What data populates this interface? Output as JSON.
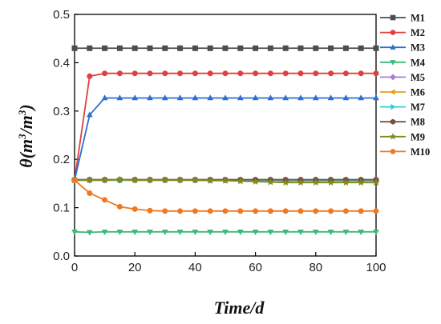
{
  "chart_data": {
    "type": "line",
    "title": "",
    "xlabel": "Time/d",
    "ylabel": {
      "symbol": "θ",
      "open": "(",
      "m1": "m",
      "sup1": "3",
      "slash": "/",
      "m2": "m",
      "sup2": "3",
      "close": ")"
    },
    "xlim": [
      0,
      100
    ],
    "ylim": [
      0,
      0.5
    ],
    "xticks": [
      "0",
      "20",
      "40",
      "60",
      "80",
      "100"
    ],
    "yticks": [
      "0.0",
      "0.1",
      "0.2",
      "0.3",
      "0.4",
      "0.5"
    ],
    "grid": false,
    "legend_position": "right",
    "x": [
      0,
      5,
      10,
      15,
      20,
      25,
      30,
      35,
      40,
      45,
      50,
      55,
      60,
      65,
      70,
      75,
      80,
      85,
      90,
      95,
      100
    ],
    "series": [
      {
        "name": "M1",
        "color": "#4d4d4d",
        "marker": "square",
        "values": [
          0.43,
          0.43,
          0.43,
          0.43,
          0.43,
          0.43,
          0.43,
          0.43,
          0.43,
          0.43,
          0.43,
          0.43,
          0.43,
          0.43,
          0.43,
          0.43,
          0.43,
          0.43,
          0.43,
          0.43,
          0.43
        ]
      },
      {
        "name": "M2",
        "color": "#e0403f",
        "marker": "circle",
        "values": [
          0.157,
          0.372,
          0.378,
          0.378,
          0.378,
          0.378,
          0.378,
          0.378,
          0.378,
          0.378,
          0.378,
          0.378,
          0.378,
          0.378,
          0.378,
          0.378,
          0.378,
          0.378,
          0.378,
          0.378,
          0.378
        ]
      },
      {
        "name": "M3",
        "color": "#2b6fd1",
        "marker": "triangle-up",
        "values": [
          0.157,
          0.292,
          0.327,
          0.327,
          0.327,
          0.327,
          0.327,
          0.327,
          0.327,
          0.327,
          0.327,
          0.327,
          0.327,
          0.327,
          0.327,
          0.327,
          0.327,
          0.327,
          0.327,
          0.327,
          0.327
        ]
      },
      {
        "name": "M4",
        "color": "#3cb87a",
        "marker": "triangle-down",
        "values": [
          0.05,
          0.049,
          0.05,
          0.05,
          0.05,
          0.05,
          0.05,
          0.05,
          0.05,
          0.05,
          0.05,
          0.05,
          0.05,
          0.05,
          0.05,
          0.05,
          0.05,
          0.05,
          0.05,
          0.05,
          0.05
        ]
      },
      {
        "name": "M5",
        "color": "#a77bd8",
        "marker": "diamond",
        "values": [
          0.157,
          0.157,
          0.157,
          0.157,
          0.157,
          0.157,
          0.157,
          0.157,
          0.157,
          0.157,
          0.157,
          0.157,
          0.157,
          0.157,
          0.157,
          0.157,
          0.157,
          0.157,
          0.157,
          0.157,
          0.157
        ]
      },
      {
        "name": "M6",
        "color": "#e0a21c",
        "marker": "triangle-left",
        "values": [
          0.157,
          0.157,
          0.157,
          0.157,
          0.157,
          0.157,
          0.157,
          0.157,
          0.157,
          0.156,
          0.156,
          0.156,
          0.156,
          0.156,
          0.155,
          0.155,
          0.155,
          0.155,
          0.155,
          0.155,
          0.155
        ]
      },
      {
        "name": "M7",
        "color": "#2ccfd6",
        "marker": "triangle-right",
        "values": [
          0.157,
          0.157,
          0.157,
          0.157,
          0.157,
          0.157,
          0.157,
          0.157,
          0.157,
          0.157,
          0.157,
          0.157,
          0.157,
          0.157,
          0.157,
          0.157,
          0.157,
          0.157,
          0.157,
          0.157,
          0.157
        ]
      },
      {
        "name": "M8",
        "color": "#7a5040",
        "marker": "hexagon",
        "values": [
          0.158,
          0.158,
          0.158,
          0.158,
          0.158,
          0.158,
          0.158,
          0.158,
          0.158,
          0.158,
          0.158,
          0.158,
          0.158,
          0.158,
          0.158,
          0.158,
          0.158,
          0.158,
          0.158,
          0.158,
          0.158
        ]
      },
      {
        "name": "M9",
        "color": "#7f8c1e",
        "marker": "star",
        "values": [
          0.157,
          0.157,
          0.157,
          0.158,
          0.157,
          0.157,
          0.157,
          0.157,
          0.157,
          0.156,
          0.156,
          0.155,
          0.154,
          0.153,
          0.152,
          0.152,
          0.152,
          0.152,
          0.152,
          0.152,
          0.152
        ]
      },
      {
        "name": "M10",
        "color": "#f07820",
        "marker": "circle",
        "values": [
          0.157,
          0.13,
          0.116,
          0.102,
          0.097,
          0.094,
          0.093,
          0.093,
          0.093,
          0.093,
          0.093,
          0.093,
          0.093,
          0.093,
          0.093,
          0.093,
          0.093,
          0.093,
          0.093,
          0.093,
          0.093
        ]
      }
    ]
  }
}
